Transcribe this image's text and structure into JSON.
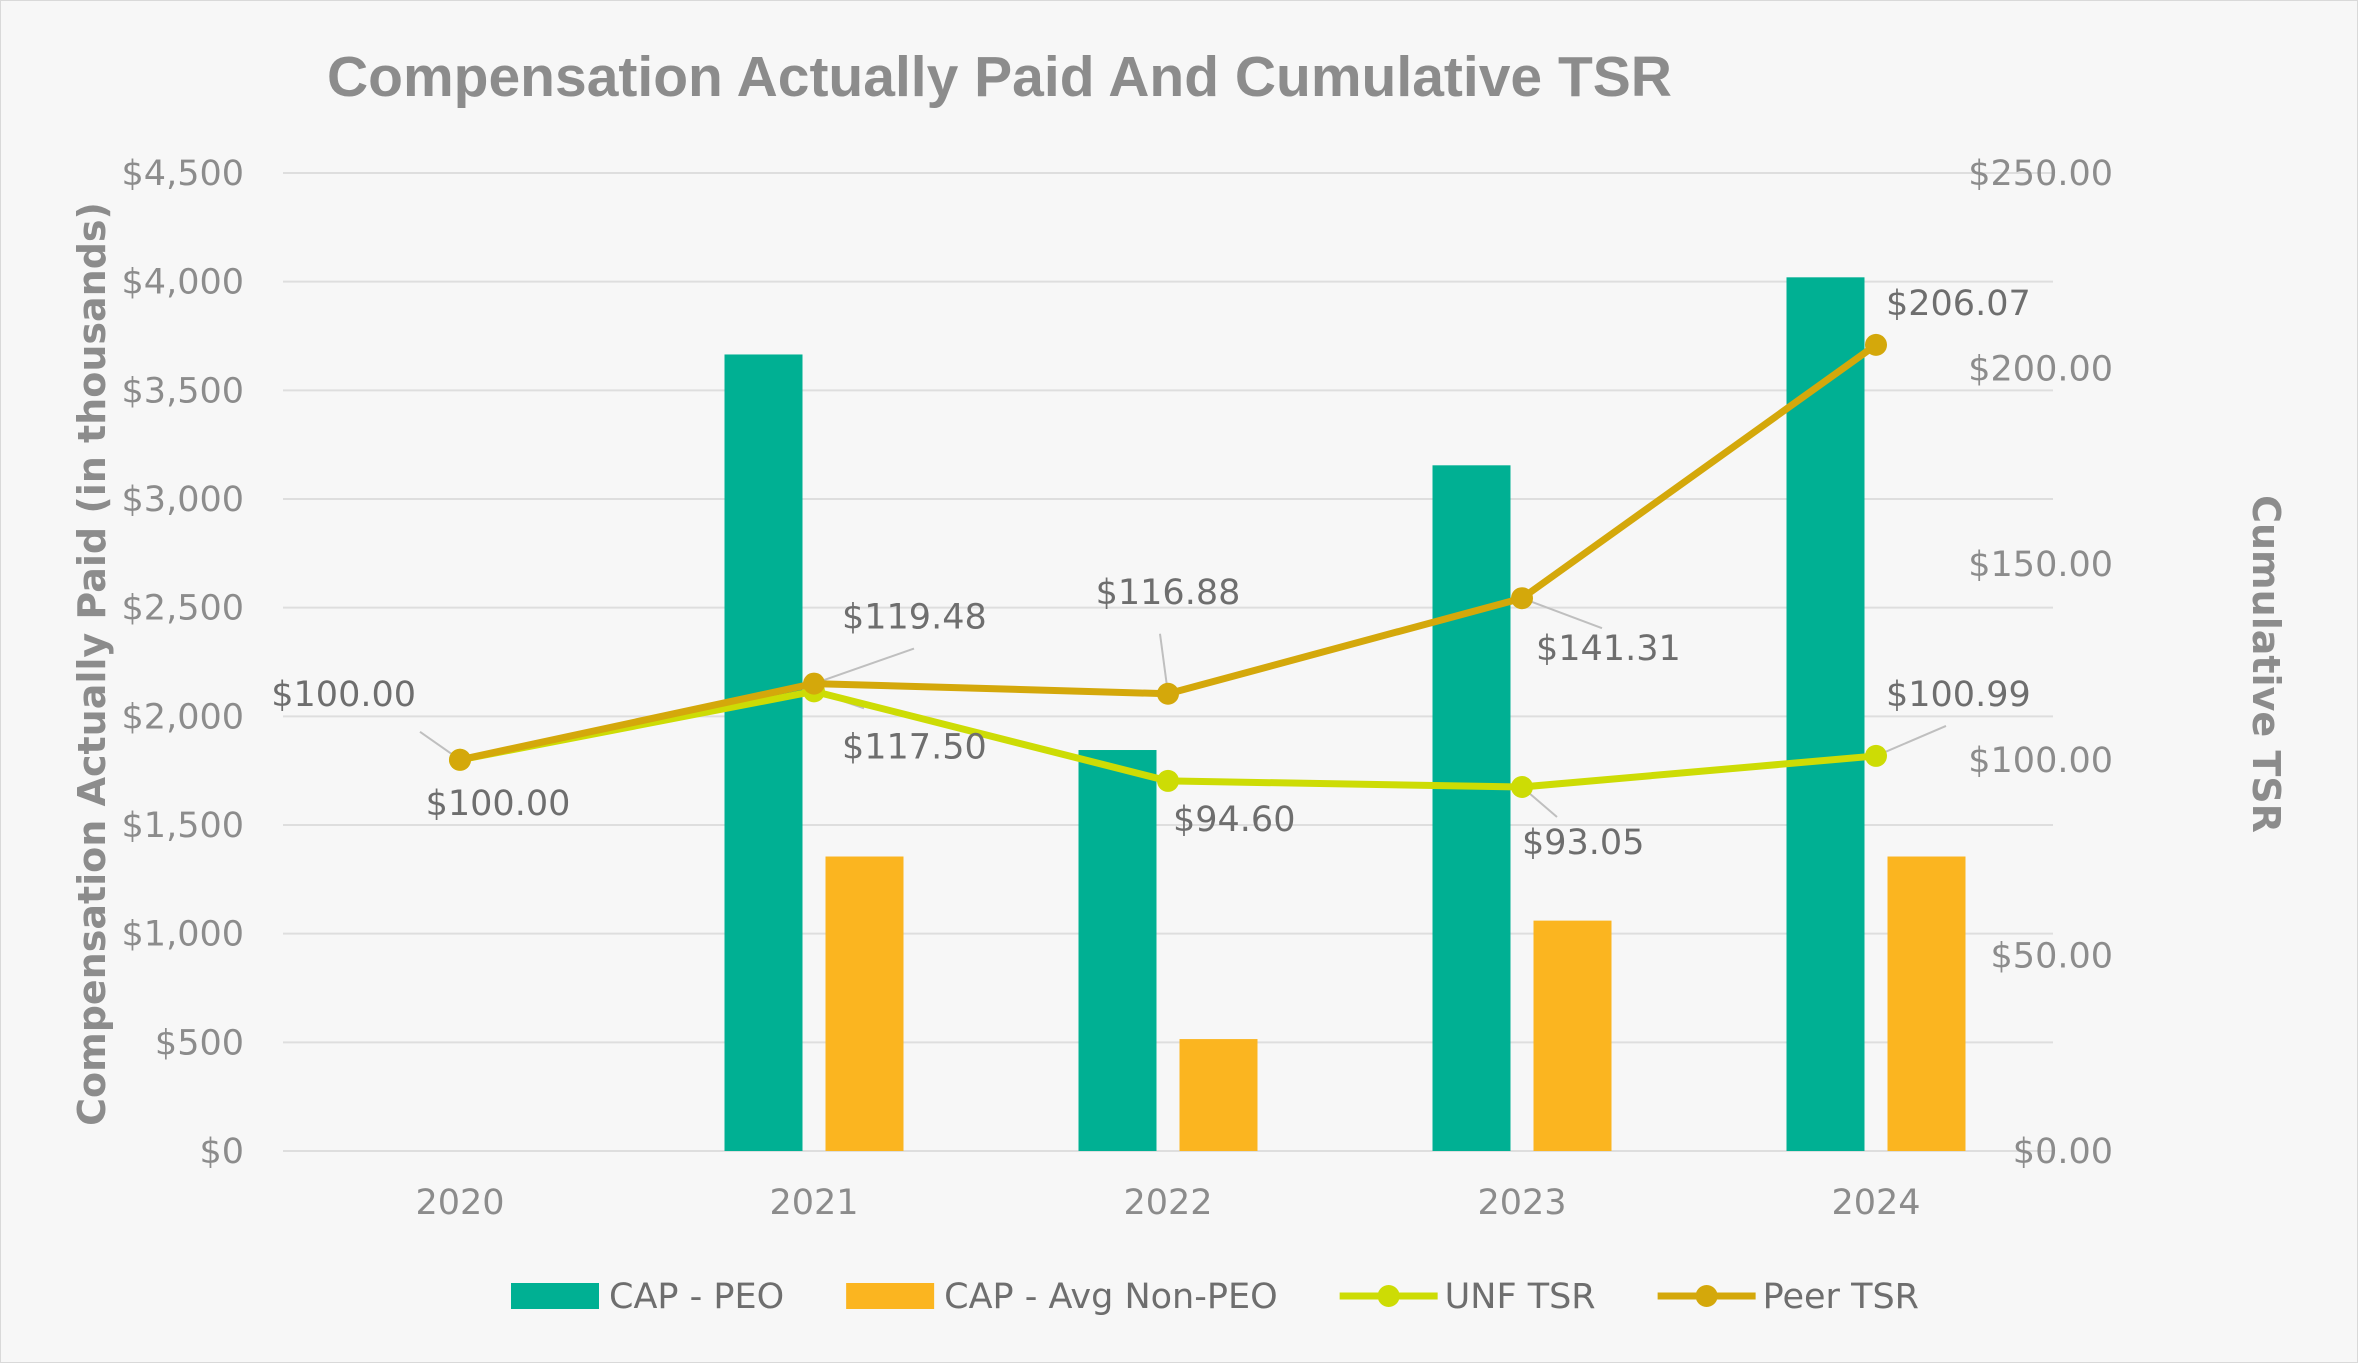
{
  "chart_data": {
    "type": "bar",
    "title": "Compensation Actually Paid And Cumulative TSR",
    "categories": [
      "2020",
      "2021",
      "2022",
      "2023",
      "2024"
    ],
    "y_left": {
      "label": "Compensation Actually Paid (in thousands)",
      "min": 0,
      "max": 4500,
      "step": 500,
      "ticks": [
        "$0",
        "$500",
        "$1,000",
        "$1,500",
        "$2,000",
        "$2,500",
        "$3,000",
        "$3,500",
        "$4,000",
        "$4,500"
      ]
    },
    "y_right": {
      "label": "Cumulative TSR",
      "min": 0,
      "max": 250,
      "step": 50,
      "ticks": [
        "$0.00",
        "$50.00",
        "$100.00",
        "$150.00",
        "$200.00",
        "$250.00"
      ]
    },
    "series": [
      {
        "name": "CAP - PEO",
        "kind": "bar",
        "axis": "left",
        "color": "#00b093",
        "values": [
          null,
          3665,
          1845,
          3155,
          4020
        ]
      },
      {
        "name": "CAP - Avg Non-PEO",
        "kind": "bar",
        "axis": "left",
        "color": "#fbb520",
        "values": [
          null,
          1355,
          515,
          1060,
          1355
        ]
      },
      {
        "name": "UNF TSR",
        "kind": "line",
        "axis": "right",
        "color": "#cddc05",
        "values": [
          100.0,
          117.5,
          94.6,
          93.05,
          100.99
        ],
        "labels": [
          "$100.00",
          "$117.50",
          "$94.60",
          "$93.05",
          "$100.99"
        ]
      },
      {
        "name": "Peer TSR",
        "kind": "line",
        "axis": "right",
        "color": "#d4a80b",
        "values": [
          100.0,
          119.48,
          116.88,
          141.31,
          206.07
        ],
        "labels": [
          "$100.00",
          "$119.48",
          "$116.88",
          "$141.31",
          "$206.07"
        ]
      }
    ],
    "legend": [
      "CAP - PEO",
      "CAP - Avg Non-PEO",
      "UNF TSR",
      "Peer TSR"
    ],
    "legend_position": "bottom",
    "grid": true
  }
}
